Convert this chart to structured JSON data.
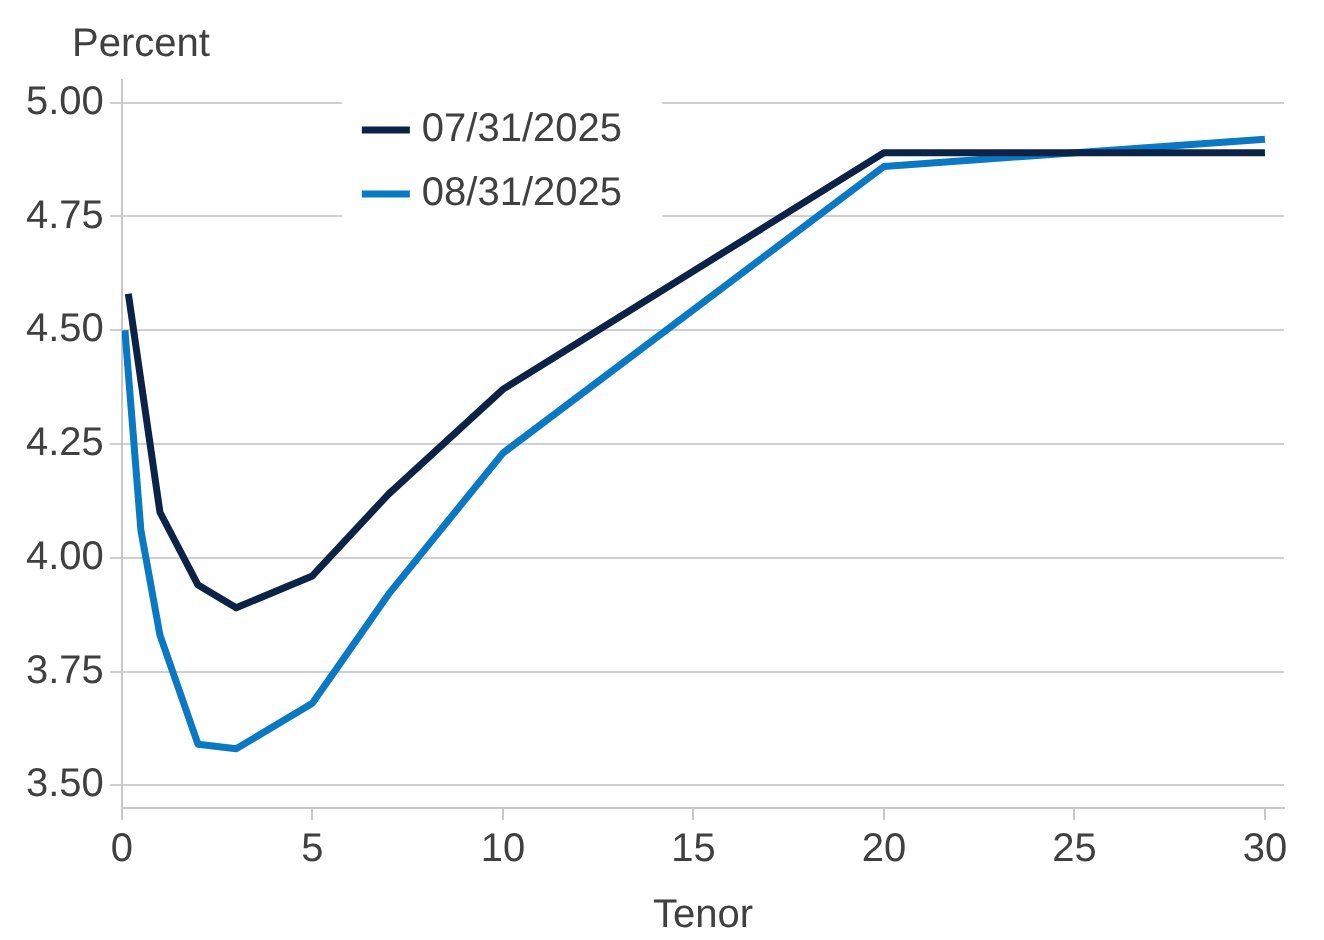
{
  "chart_data": {
    "type": "line",
    "xlabel": "Tenor",
    "ylabel": "Percent",
    "xlim": [
      0,
      30.5
    ],
    "xticks": [
      0,
      5,
      10,
      15,
      20,
      25,
      30
    ],
    "ylim": [
      3.45,
      5.05
    ],
    "yticks": [
      {
        "value": 3.5,
        "label": "3.50"
      },
      {
        "value": 3.75,
        "label": "3.75"
      },
      {
        "value": 4,
        "label": "4.00"
      },
      {
        "value": 4.25,
        "label": "4.25"
      },
      {
        "value": 4.5,
        "label": "4.50"
      },
      {
        "value": 4.75,
        "label": "4.75"
      },
      {
        "value": 5,
        "label": "5.00"
      }
    ],
    "grid": "y",
    "legend": "top left",
    "marker": "none",
    "line_style": "solid",
    "series": [
      {
        "name": "07/31/2025",
        "color": "#0b2346",
        "x": [
          0.17,
          1,
          2,
          3,
          5,
          7,
          10,
          20,
          30
        ],
        "values": [
          4.58,
          4.1,
          3.94,
          3.89,
          3.96,
          4.14,
          4.37,
          4.89,
          4.89
        ]
      },
      {
        "name": "08/31/2025",
        "color": "#0a78c2",
        "x": [
          0.08,
          0.5,
          1,
          2,
          3,
          5,
          7,
          10,
          20,
          30
        ],
        "values": [
          4.5,
          4.06,
          3.83,
          3.59,
          3.58,
          3.68,
          3.92,
          4.23,
          4.86,
          4.92
        ]
      }
    ]
  }
}
